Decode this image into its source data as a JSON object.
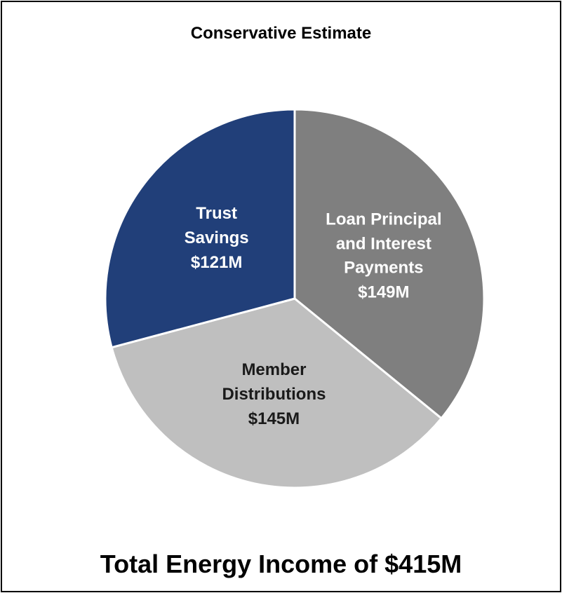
{
  "chart_data": {
    "type": "pie",
    "title": "Conservative Estimate",
    "annotation": "Total Energy Income of $415M",
    "categories": [
      "Loan Principal and Interest Payments",
      "Member Distributions",
      "Trust Savings"
    ],
    "values": [
      149,
      145,
      121
    ],
    "value_labels": [
      "$149M",
      "$145M",
      "$121M"
    ],
    "colors": [
      "#7f7f7f",
      "#bfbfbf",
      "#213f79"
    ],
    "label_colors": [
      "#ffffff",
      "#1a1a1a",
      "#ffffff"
    ]
  }
}
